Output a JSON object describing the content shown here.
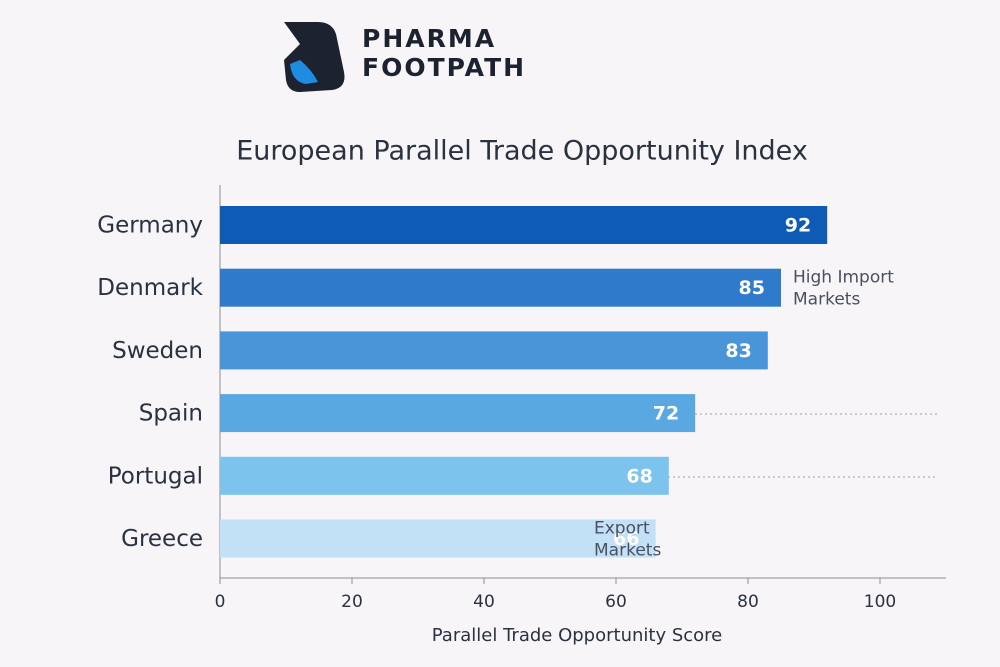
{
  "brand": {
    "line1": "PHARMA",
    "line2": "FOOTPATH"
  },
  "chart_data": {
    "type": "bar",
    "orientation": "horizontal",
    "title": "European Parallel Trade Opportunity Index",
    "x_label": "Parallel Trade Opportunity Score",
    "categories": [
      "Germany",
      "Denmark",
      "Sweden",
      "Spain",
      "Portugal",
      "Greece"
    ],
    "values": [
      92,
      85,
      83,
      72,
      68,
      66
    ],
    "colors": [
      "#0d5bb5",
      "#2f7acb",
      "#4a94d8",
      "#5aa8e2",
      "#7cc3ee",
      "#c2e0f6"
    ],
    "xlim": [
      0,
      110
    ],
    "xticks": [
      0,
      20,
      40,
      60,
      80,
      100
    ],
    "annotations": [
      {
        "text": [
          "High Import",
          "Markets"
        ],
        "category": 1
      },
      {
        "text": [
          "Export",
          "Markets"
        ],
        "category": 5
      }
    ]
  }
}
